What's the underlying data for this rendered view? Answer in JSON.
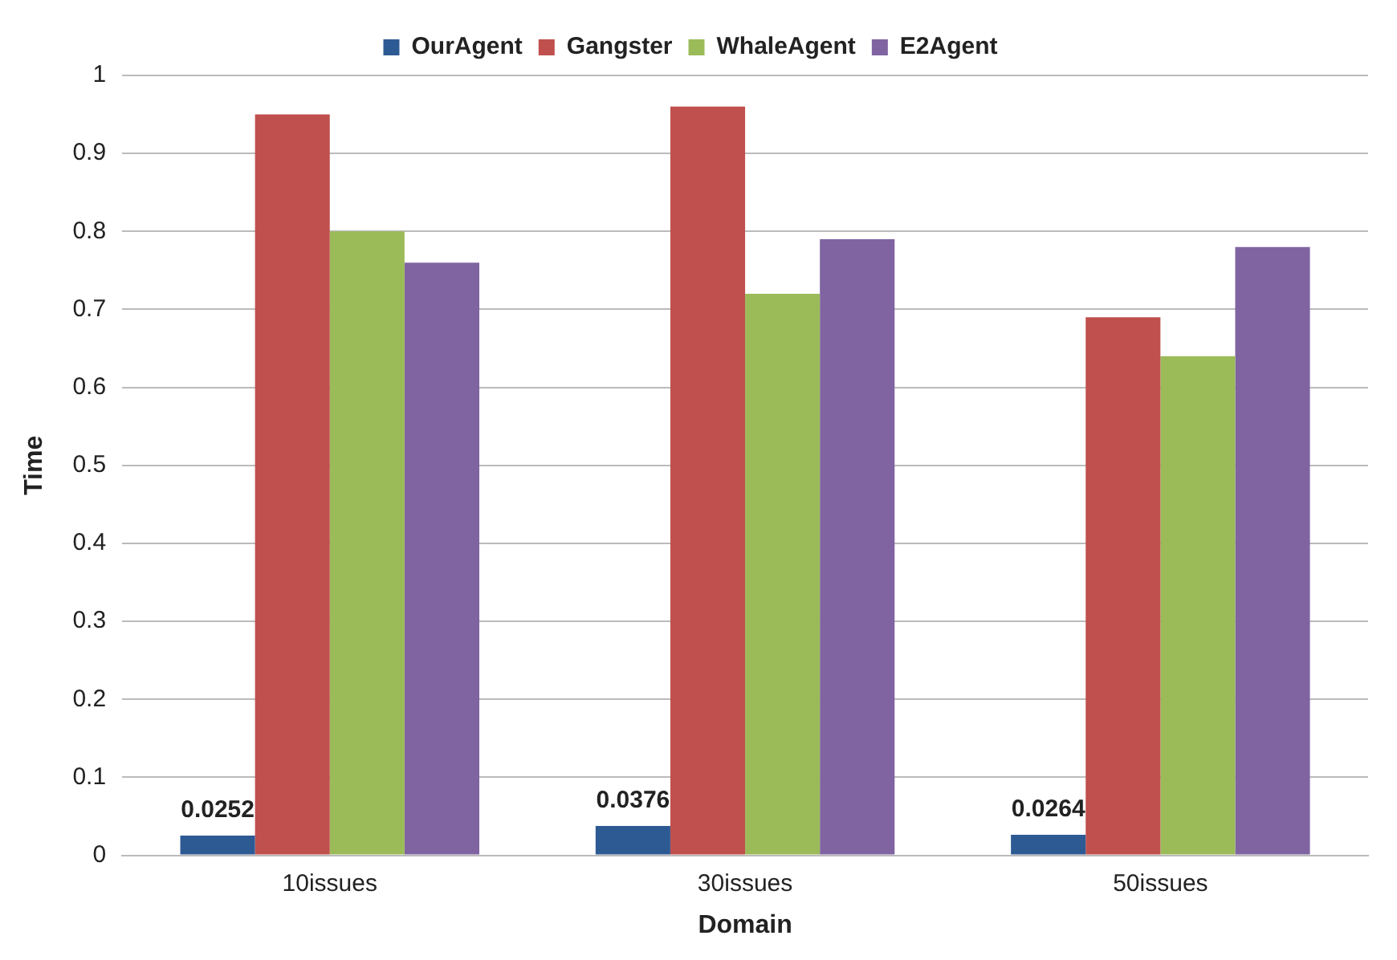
{
  "chart_data": {
    "type": "bar",
    "xlabel": "Domain",
    "ylabel": "Time",
    "categories": [
      "10issues",
      "30issues",
      "50issues"
    ],
    "series": [
      {
        "name": "OurAgent",
        "color": "#2e5a94",
        "values": [
          0.0252,
          0.0376,
          0.0264
        ],
        "value_labels": [
          "0.0252",
          "0.0376",
          "0.0264"
        ]
      },
      {
        "name": "Gangster",
        "color": "#c0504d",
        "values": [
          0.95,
          0.96,
          0.69
        ]
      },
      {
        "name": "WhaleAgent",
        "color": "#9bbb59",
        "values": [
          0.8,
          0.72,
          0.64
        ]
      },
      {
        "name": "E2Agent",
        "color": "#8064a2",
        "values": [
          0.76,
          0.79,
          0.78
        ]
      }
    ],
    "ylim": [
      0,
      1
    ],
    "yticks": [
      0,
      0.1,
      0.2,
      0.3,
      0.4,
      0.5,
      0.6,
      0.7,
      0.8,
      0.9,
      1
    ],
    "grid": "y",
    "legend": "top"
  }
}
